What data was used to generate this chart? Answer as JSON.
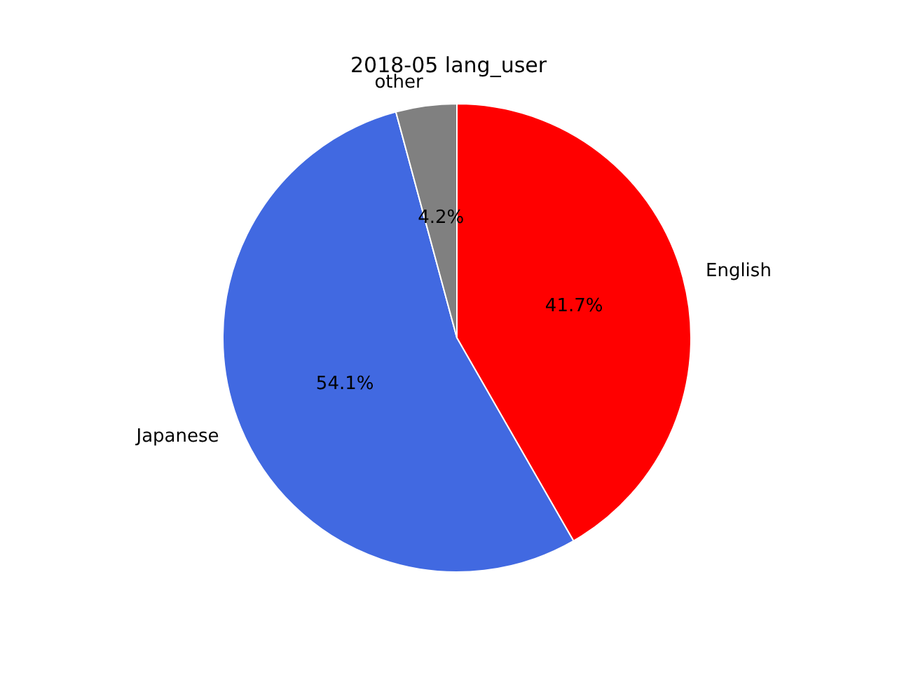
{
  "chart_data": {
    "type": "pie",
    "title": "2018-05 lang_user",
    "categories": [
      "English",
      "Japanese",
      "other"
    ],
    "values": [
      41.7,
      54.1,
      4.2
    ],
    "value_labels": [
      "41.7%",
      "54.1%",
      "4.2%"
    ],
    "colors": [
      "#ff0000",
      "#4169e1",
      "#808080"
    ],
    "legend": false
  }
}
